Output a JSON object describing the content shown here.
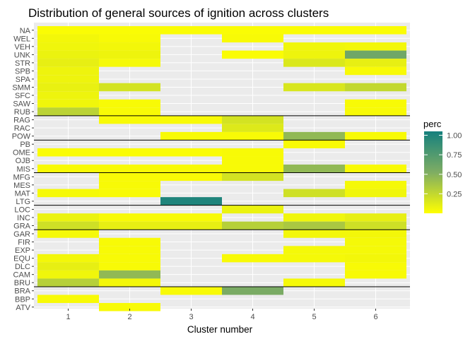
{
  "chart_data": {
    "type": "heatmap",
    "title": "Distribution of general sources of ignition across clusters",
    "xlabel": "Cluster number",
    "ylabel": "",
    "x_categories": [
      "1",
      "2",
      "3",
      "4",
      "5",
      "6"
    ],
    "y_categories": [
      "NA",
      "WEL",
      "VEH",
      "UNK",
      "STR",
      "SPB",
      "SPA",
      "SMM",
      "SFC",
      "SAW",
      "RUB",
      "RAG",
      "RAC",
      "POW",
      "PB",
      "OME",
      "OJB",
      "MIS",
      "MFG",
      "MES",
      "MAT",
      "LTG",
      "LOC",
      "INC",
      "GRA",
      "GAR",
      "FIR",
      "EXP",
      "EQU",
      "DLC",
      "CAM",
      "BRU",
      "BRA",
      "BBP",
      "ATV"
    ],
    "legend_title": "perc",
    "legend_ticks": [
      "0.25",
      "0.50",
      "0.75",
      "1.00"
    ],
    "legend_tick_values": [
      0.25,
      0.5,
      0.75,
      1.0
    ],
    "color_scale": {
      "low": "#ffff00",
      "mid": "#7fad63",
      "high": "#15807e",
      "range": [
        0.0,
        1.05
      ]
    },
    "panel_background": "#ebebeb",
    "grid": true,
    "group_separators_after": [
      "RUB",
      "POW",
      "MIS",
      "LTG",
      "GRA",
      "BRU"
    ],
    "cells": [
      {
        "y": "NA",
        "x": "1",
        "v": 0.02
      },
      {
        "y": "NA",
        "x": "2",
        "v": 0.02
      },
      {
        "y": "NA",
        "x": "3",
        "v": 0.02
      },
      {
        "y": "NA",
        "x": "4",
        "v": 0.02
      },
      {
        "y": "NA",
        "x": "5",
        "v": 0.02
      },
      {
        "y": "NA",
        "x": "6",
        "v": 0.02
      },
      {
        "y": "WEL",
        "x": "1",
        "v": 0.05
      },
      {
        "y": "WEL",
        "x": "2",
        "v": 0.03
      },
      {
        "y": "WEL",
        "x": "4",
        "v": 0.03
      },
      {
        "y": "VEH",
        "x": "1",
        "v": 0.06
      },
      {
        "y": "VEH",
        "x": "2",
        "v": 0.05
      },
      {
        "y": "VEH",
        "x": "5",
        "v": 0.06
      },
      {
        "y": "VEH",
        "x": "6",
        "v": 0.05
      },
      {
        "y": "UNK",
        "x": "1",
        "v": 0.08
      },
      {
        "y": "UNK",
        "x": "2",
        "v": 0.07
      },
      {
        "y": "UNK",
        "x": "4",
        "v": 0.02
      },
      {
        "y": "UNK",
        "x": "5",
        "v": 0.07
      },
      {
        "y": "UNK",
        "x": "6",
        "v": 0.6
      },
      {
        "y": "STR",
        "x": "1",
        "v": 0.1
      },
      {
        "y": "STR",
        "x": "2",
        "v": 0.04
      },
      {
        "y": "STR",
        "x": "5",
        "v": 0.15
      },
      {
        "y": "STR",
        "x": "6",
        "v": 0.1
      },
      {
        "y": "SPB",
        "x": "1",
        "v": 0.07
      },
      {
        "y": "SPB",
        "x": "6",
        "v": 0.03
      },
      {
        "y": "SPA",
        "x": "1",
        "v": 0.07
      },
      {
        "y": "SMM",
        "x": "1",
        "v": 0.09
      },
      {
        "y": "SMM",
        "x": "2",
        "v": 0.18
      },
      {
        "y": "SMM",
        "x": "5",
        "v": 0.16
      },
      {
        "y": "SMM",
        "x": "6",
        "v": 0.25
      },
      {
        "y": "SFC",
        "x": "1",
        "v": 0.07
      },
      {
        "y": "SAW",
        "x": "1",
        "v": 0.06
      },
      {
        "y": "SAW",
        "x": "2",
        "v": 0.03
      },
      {
        "y": "SAW",
        "x": "6",
        "v": 0.03
      },
      {
        "y": "RUB",
        "x": "1",
        "v": 0.28
      },
      {
        "y": "RUB",
        "x": "2",
        "v": 0.03
      },
      {
        "y": "RUB",
        "x": "6",
        "v": 0.03
      },
      {
        "y": "RAG",
        "x": "2",
        "v": 0.03
      },
      {
        "y": "RAG",
        "x": "3",
        "v": 0.03
      },
      {
        "y": "RAG",
        "x": "4",
        "v": 0.18
      },
      {
        "y": "RAC",
        "x": "4",
        "v": 0.14
      },
      {
        "y": "POW",
        "x": "3",
        "v": 0.03
      },
      {
        "y": "POW",
        "x": "4",
        "v": 0.03
      },
      {
        "y": "POW",
        "x": "5",
        "v": 0.45
      },
      {
        "y": "POW",
        "x": "6",
        "v": 0.03
      },
      {
        "y": "PB",
        "x": "5",
        "v": 0.03
      },
      {
        "y": "OME",
        "x": "1",
        "v": 0.02
      },
      {
        "y": "OME",
        "x": "2",
        "v": 0.02
      },
      {
        "y": "OME",
        "x": "3",
        "v": 0.02
      },
      {
        "y": "OME",
        "x": "4",
        "v": 0.03
      },
      {
        "y": "OJB",
        "x": "4",
        "v": 0.03
      },
      {
        "y": "MIS",
        "x": "1",
        "v": 0.03
      },
      {
        "y": "MIS",
        "x": "2",
        "v": 0.03
      },
      {
        "y": "MIS",
        "x": "3",
        "v": 0.03
      },
      {
        "y": "MIS",
        "x": "4",
        "v": 0.03
      },
      {
        "y": "MIS",
        "x": "5",
        "v": 0.45
      },
      {
        "y": "MIS",
        "x": "6",
        "v": 0.03
      },
      {
        "y": "MFG",
        "x": "2",
        "v": 0.03
      },
      {
        "y": "MFG",
        "x": "3",
        "v": 0.03
      },
      {
        "y": "MFG",
        "x": "4",
        "v": 0.18
      },
      {
        "y": "MES",
        "x": "2",
        "v": 0.03
      },
      {
        "y": "MES",
        "x": "6",
        "v": 0.04
      },
      {
        "y": "MAT",
        "x": "1",
        "v": 0.04
      },
      {
        "y": "MAT",
        "x": "2",
        "v": 0.03
      },
      {
        "y": "MAT",
        "x": "5",
        "v": 0.2
      },
      {
        "y": "MAT",
        "x": "6",
        "v": 0.06
      },
      {
        "y": "LTG",
        "x": "3",
        "v": 1.0
      },
      {
        "y": "LOC",
        "x": "4",
        "v": 0.08
      },
      {
        "y": "INC",
        "x": "1",
        "v": 0.08
      },
      {
        "y": "INC",
        "x": "2",
        "v": 0.03
      },
      {
        "y": "INC",
        "x": "3",
        "v": 0.03
      },
      {
        "y": "INC",
        "x": "5",
        "v": 0.06
      },
      {
        "y": "INC",
        "x": "6",
        "v": 0.1
      },
      {
        "y": "GRA",
        "x": "1",
        "v": 0.2
      },
      {
        "y": "GRA",
        "x": "2",
        "v": 0.1
      },
      {
        "y": "GRA",
        "x": "3",
        "v": 0.1
      },
      {
        "y": "GRA",
        "x": "4",
        "v": 0.3
      },
      {
        "y": "GRA",
        "x": "5",
        "v": 0.35
      },
      {
        "y": "GRA",
        "x": "6",
        "v": 0.2
      },
      {
        "y": "GAR",
        "x": "1",
        "v": 0.04
      },
      {
        "y": "GAR",
        "x": "5",
        "v": 0.05
      },
      {
        "y": "GAR",
        "x": "6",
        "v": 0.05
      },
      {
        "y": "FIR",
        "x": "2",
        "v": 0.03
      },
      {
        "y": "FIR",
        "x": "6",
        "v": 0.04
      },
      {
        "y": "EXP",
        "x": "2",
        "v": 0.03
      },
      {
        "y": "EXP",
        "x": "5",
        "v": 0.04
      },
      {
        "y": "EXP",
        "x": "6",
        "v": 0.04
      },
      {
        "y": "EQU",
        "x": "1",
        "v": 0.05
      },
      {
        "y": "EQU",
        "x": "2",
        "v": 0.03
      },
      {
        "y": "EQU",
        "x": "4",
        "v": 0.03
      },
      {
        "y": "EQU",
        "x": "5",
        "v": 0.04
      },
      {
        "y": "EQU",
        "x": "6",
        "v": 0.05
      },
      {
        "y": "DLC",
        "x": "1",
        "v": 0.1
      },
      {
        "y": "DLC",
        "x": "2",
        "v": 0.03
      },
      {
        "y": "DLC",
        "x": "6",
        "v": 0.03
      },
      {
        "y": "CAM",
        "x": "1",
        "v": 0.06
      },
      {
        "y": "CAM",
        "x": "2",
        "v": 0.45
      },
      {
        "y": "CAM",
        "x": "6",
        "v": 0.03
      },
      {
        "y": "BRU",
        "x": "1",
        "v": 0.3
      },
      {
        "y": "BRU",
        "x": "2",
        "v": 0.05
      },
      {
        "y": "BRU",
        "x": "5",
        "v": 0.04
      },
      {
        "y": "BRA",
        "x": "3",
        "v": 0.03
      },
      {
        "y": "BRA",
        "x": "4",
        "v": 0.55
      },
      {
        "y": "BBP",
        "x": "1",
        "v": 0.03
      },
      {
        "y": "ATV",
        "x": "2",
        "v": 0.03
      }
    ]
  }
}
